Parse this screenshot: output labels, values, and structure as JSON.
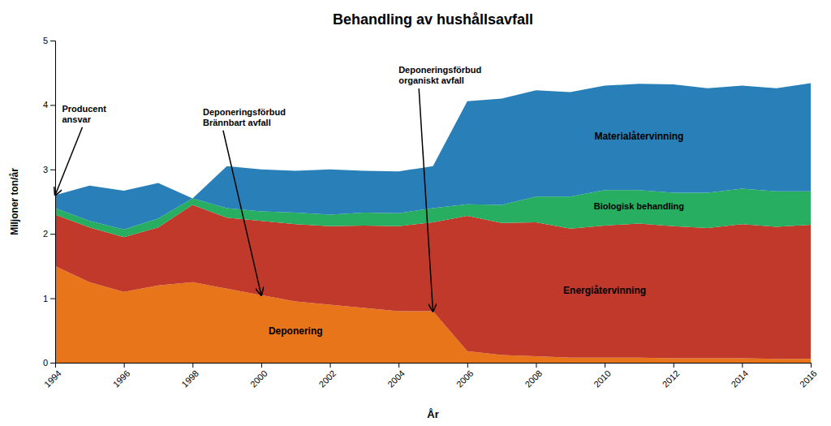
{
  "chart_data": {
    "type": "area",
    "title": "Behandling av hushållsavfall",
    "xlabel": "År",
    "ylabel": "Miljoner ton/år",
    "stacked": true,
    "grid": false,
    "x": [
      1994,
      1995,
      1996,
      1997,
      1998,
      1999,
      2000,
      2001,
      2002,
      2003,
      2004,
      2005,
      2006,
      2007,
      2008,
      2009,
      2010,
      2011,
      2012,
      2013,
      2014,
      2015,
      2016
    ],
    "series": [
      {
        "name": "Deponering",
        "color": "#E8751A",
        "values": [
          1.5,
          1.25,
          1.1,
          1.2,
          1.25,
          1.15,
          1.05,
          0.95,
          0.9,
          0.85,
          0.8,
          0.8,
          0.18,
          0.12,
          0.1,
          0.08,
          0.08,
          0.08,
          0.07,
          0.07,
          0.07,
          0.06,
          0.06
        ]
      },
      {
        "name": "Energiåtervinning",
        "color": "#C0392B",
        "values": [
          0.8,
          0.85,
          0.85,
          0.9,
          1.2,
          1.1,
          1.15,
          1.2,
          1.22,
          1.28,
          1.32,
          1.38,
          2.1,
          2.05,
          2.08,
          2.0,
          2.05,
          2.08,
          2.05,
          2.02,
          2.08,
          2.05,
          2.08
        ]
      },
      {
        "name": "Biologisk behandling",
        "color": "#27AE60",
        "values": [
          0.1,
          0.1,
          0.12,
          0.14,
          0.1,
          0.15,
          0.15,
          0.18,
          0.18,
          0.2,
          0.2,
          0.22,
          0.18,
          0.28,
          0.4,
          0.5,
          0.55,
          0.52,
          0.52,
          0.55,
          0.55,
          0.55,
          0.52
        ]
      },
      {
        "name": "Materialåtervinning",
        "color": "#2980B9",
        "values": [
          0.2,
          0.55,
          0.6,
          0.55,
          0.0,
          0.65,
          0.65,
          0.65,
          0.7,
          0.65,
          0.65,
          0.65,
          1.6,
          1.65,
          1.65,
          1.62,
          1.62,
          1.65,
          1.68,
          1.62,
          1.6,
          1.6,
          1.68
        ]
      }
    ],
    "xlim": [
      1994,
      2016
    ],
    "xticks": [
      1994,
      1996,
      1998,
      2000,
      2002,
      2004,
      2006,
      2008,
      2010,
      2012,
      2014,
      2016
    ],
    "ylim": [
      0,
      5
    ],
    "yticks": [
      0,
      1,
      2,
      3,
      4,
      5
    ],
    "annotations": [
      {
        "text": [
          "Producent",
          "ansvar"
        ]
      },
      {
        "text": [
          "Deponeringsförbud",
          "Brännbart avfall"
        ]
      },
      {
        "text": [
          "Deponeringsförbud",
          "organiskt avfall"
        ]
      }
    ]
  }
}
